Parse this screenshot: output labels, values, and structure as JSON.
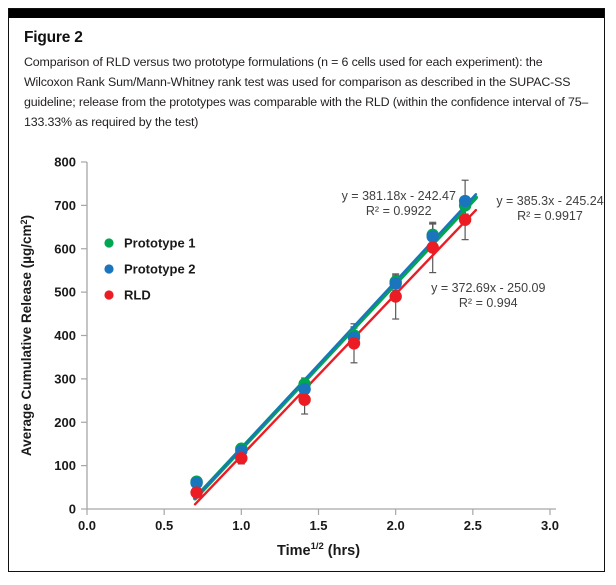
{
  "figure": {
    "label": "Figure 2",
    "caption": "Comparison of RLD versus two prototype formulations (n = 6 cells used for each experiment): the Wilcoxon Rank Sum/Mann-Whitney rank test was used for comparison as described in the SUPAC-SS guideline; release from the prototypes was comparable with the RLD (within the confidence interval of 75–133.33% as required by the test)"
  },
  "colors": {
    "prototype1": "#00A651",
    "prototype2": "#1B75BC",
    "rld": "#EC1C24",
    "axis": "#A6A6A6",
    "tick_label": "#1a1a1a",
    "errorbar": "#595959",
    "annotation": "#3F3F3F",
    "header_bar": "#000000"
  },
  "chart_data": {
    "type": "scatter",
    "title": "",
    "xlabel_parts": {
      "base": "Time",
      "sup": "1/2",
      "rest": " (hrs)"
    },
    "ylabel_parts": {
      "pre": "Average Cumulative Release (µg/cm",
      "sup": "2",
      "post": ")"
    },
    "xlim": [
      0,
      3
    ],
    "ylim": [
      0,
      800
    ],
    "xtick_labels": [
      "0.0",
      "0.5",
      "1.0",
      "1.5",
      "2.0",
      "2.5",
      "3.0"
    ],
    "ytick_labels": [
      "0",
      "100",
      "200",
      "300",
      "400",
      "500",
      "600",
      "700",
      "800"
    ],
    "grid": false,
    "legend_position": "upper-left-inside",
    "x": [
      0.71,
      1.0,
      1.41,
      1.73,
      2.0,
      2.24,
      2.45
    ],
    "trend_x_range": [
      0.7,
      2.52
    ],
    "series": [
      {
        "name": "Prototype 1",
        "color_key": "prototype1",
        "values": [
          63,
          139,
          288,
          400,
          524,
          632,
          700
        ],
        "errors": [
          6,
          8,
          14,
          20,
          15,
          25,
          20
        ],
        "trendline": {
          "slope": 381.18,
          "intercept": -242.47
        },
        "equation_label": "y = 381.18x - 242.47",
        "r2_label": "R² = 0.9922"
      },
      {
        "name": "Prototype 2",
        "color_key": "prototype2",
        "values": [
          60,
          134,
          276,
          395,
          520,
          628,
          710
        ],
        "errors": [
          6,
          8,
          14,
          22,
          16,
          30,
          48
        ],
        "trendline": {
          "slope": 385.3,
          "intercept": -245.24
        },
        "equation_label": "y = 385.3x - 245.24",
        "r2_label": "R² = 0.9917"
      },
      {
        "name": "RLD",
        "color_key": "rld",
        "values": [
          38,
          117,
          252,
          382,
          490,
          603,
          667
        ],
        "errors": [
          8,
          13,
          33,
          45,
          52,
          58,
          46
        ],
        "trendline": {
          "slope": 372.69,
          "intercept": -250.09
        },
        "equation_label": "y = 372.69x - 250.09",
        "r2_label": "R² = 0.994"
      }
    ],
    "annotations": [
      {
        "series": "Prototype 1",
        "line1": "y = 381.18x - 242.47",
        "line2": "R² = 0.9922",
        "x": 2.02,
        "y": 712
      },
      {
        "series": "Prototype 2",
        "line1": "y = 385.3x - 245.24",
        "line2": "R² = 0.9917",
        "x": 3.0,
        "y": 701
      },
      {
        "series": "RLD",
        "line1": "y = 372.69x - 250.09",
        "line2": "R² = 0.994",
        "x": 2.6,
        "y": 500
      }
    ]
  }
}
